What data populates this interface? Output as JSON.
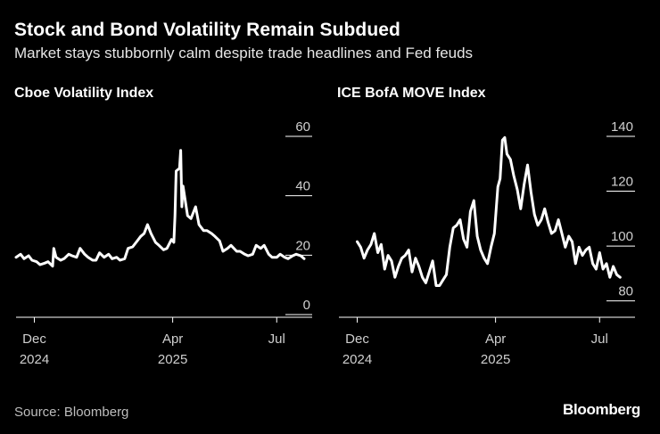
{
  "header": {
    "title": "Stock and Bond Volatility Remain Subdued",
    "subtitle": "Market stays stubbornly calm despite trade headlines and Fed feuds"
  },
  "footer": {
    "source": "Source: Bloomberg",
    "brand": "Bloomberg"
  },
  "colors": {
    "background": "#000000",
    "line": "#ffffff",
    "axis": "#ffffff",
    "text": "#cfcfcf"
  },
  "chart_data": [
    {
      "type": "line",
      "title": "Cboe Volatility Index",
      "x_tick_labels": [
        {
          "month": "Dec",
          "year": "2024",
          "x": "2024-12-01"
        },
        {
          "month": "Apr",
          "year": "2025",
          "x": "2025-04-01"
        },
        {
          "month": "Jul",
          "year": "",
          "x": "2025-07-01"
        }
      ],
      "xlim": [
        "2024-11-15",
        "2025-08-01"
      ],
      "ylim": [
        0,
        60
      ],
      "y_ticks": [
        0,
        20,
        40,
        60
      ],
      "grid": false,
      "series": [
        {
          "x": [
            "2024-11-15",
            "2024-11-19",
            "2024-11-22",
            "2024-11-26",
            "2024-11-29",
            "2024-12-03",
            "2024-12-06",
            "2024-12-10",
            "2024-12-13",
            "2024-12-17",
            "2024-12-18",
            "2024-12-20",
            "2024-12-24",
            "2024-12-27",
            "2024-12-31",
            "2025-01-03",
            "2025-01-07",
            "2025-01-10",
            "2025-01-14",
            "2025-01-17",
            "2025-01-21",
            "2025-01-24",
            "2025-01-27",
            "2025-01-31",
            "2025-02-04",
            "2025-02-07",
            "2025-02-11",
            "2025-02-14",
            "2025-02-18",
            "2025-02-21",
            "2025-02-25",
            "2025-02-28",
            "2025-03-04",
            "2025-03-07",
            "2025-03-10",
            "2025-03-13",
            "2025-03-17",
            "2025-03-20",
            "2025-03-24",
            "2025-03-27",
            "2025-03-31",
            "2025-04-02",
            "2025-04-03",
            "2025-04-04",
            "2025-04-07",
            "2025-04-08",
            "2025-04-09",
            "2025-04-10",
            "2025-04-14",
            "2025-04-17",
            "2025-04-21",
            "2025-04-24",
            "2025-04-28",
            "2025-05-01",
            "2025-05-05",
            "2025-05-08",
            "2025-05-12",
            "2025-05-15",
            "2025-05-19",
            "2025-05-22",
            "2025-05-27",
            "2025-05-30",
            "2025-06-03",
            "2025-06-06",
            "2025-06-10",
            "2025-06-13",
            "2025-06-17",
            "2025-06-20",
            "2025-06-24",
            "2025-06-27",
            "2025-07-01",
            "2025-07-04",
            "2025-07-08",
            "2025-07-11",
            "2025-07-15",
            "2025-07-18",
            "2025-07-22",
            "2025-07-25"
          ],
          "values": [
            16,
            17,
            15.5,
            16.5,
            15,
            14.5,
            13.5,
            14,
            14.5,
            13,
            19,
            16,
            15,
            15.5,
            17,
            16.5,
            16,
            19,
            17,
            16,
            15,
            15,
            17.5,
            16,
            17,
            15.5,
            16,
            15,
            15.5,
            19,
            19.5,
            21,
            23,
            24,
            27,
            24,
            21,
            20,
            18.5,
            19,
            22,
            21,
            30,
            45,
            46,
            52,
            33,
            40,
            30,
            29,
            33,
            27,
            25,
            25,
            24,
            23,
            21.5,
            18,
            19,
            20,
            18,
            18,
            17,
            16.5,
            17,
            20,
            19,
            20,
            17,
            16,
            16,
            17,
            16,
            15.5,
            16.5,
            17,
            16.5,
            15.5
          ]
        }
      ]
    },
    {
      "type": "line",
      "title": "ICE BofA MOVE Index",
      "x_tick_labels": [
        {
          "month": "Dec",
          "year": "2024",
          "x": "2024-12-01"
        },
        {
          "month": "Apr",
          "year": "2025",
          "x": "2025-04-01"
        },
        {
          "month": "Jul",
          "year": "",
          "x": "2025-07-01"
        }
      ],
      "xlim": [
        "2024-11-15",
        "2025-08-01"
      ],
      "ylim": [
        75,
        140
      ],
      "y_ticks": [
        80,
        100,
        120,
        140
      ],
      "grid": false,
      "series": [
        {
          "x": [
            "2024-12-01",
            "2024-12-04",
            "2024-12-07",
            "2024-12-10",
            "2024-12-13",
            "2024-12-16",
            "2024-12-19",
            "2024-12-22",
            "2024-12-25",
            "2024-12-28",
            "2024-12-31",
            "2025-01-03",
            "2025-01-06",
            "2025-01-09",
            "2025-01-12",
            "2025-01-15",
            "2025-01-18",
            "2025-01-21",
            "2025-01-24",
            "2025-01-27",
            "2025-01-30",
            "2025-02-02",
            "2025-02-05",
            "2025-02-08",
            "2025-02-11",
            "2025-02-14",
            "2025-02-17",
            "2025-02-20",
            "2025-02-23",
            "2025-02-26",
            "2025-03-01",
            "2025-03-04",
            "2025-03-07",
            "2025-03-10",
            "2025-03-13",
            "2025-03-16",
            "2025-03-19",
            "2025-03-22",
            "2025-03-25",
            "2025-03-28",
            "2025-03-31",
            "2025-04-03",
            "2025-04-05",
            "2025-04-07",
            "2025-04-09",
            "2025-04-11",
            "2025-04-14",
            "2025-04-17",
            "2025-04-20",
            "2025-04-23",
            "2025-04-26",
            "2025-04-29",
            "2025-05-02",
            "2025-05-05",
            "2025-05-08",
            "2025-05-11",
            "2025-05-14",
            "2025-05-17",
            "2025-05-20",
            "2025-05-23",
            "2025-05-26",
            "2025-05-29",
            "2025-06-01",
            "2025-06-04",
            "2025-06-07",
            "2025-06-10",
            "2025-06-13",
            "2025-06-16",
            "2025-06-19",
            "2025-06-22",
            "2025-06-25",
            "2025-06-28",
            "2025-07-01",
            "2025-07-04",
            "2025-07-07",
            "2025-07-10",
            "2025-07-13",
            "2025-07-16",
            "2025-07-19"
          ],
          "values": [
            98,
            96,
            92,
            95,
            97,
            101,
            94,
            97,
            88,
            93,
            91,
            85,
            89,
            92,
            93,
            95,
            87,
            92,
            89,
            85,
            83,
            87,
            91,
            82,
            82,
            84,
            86,
            96,
            103,
            104,
            106,
            99,
            96,
            109,
            113,
            100,
            95,
            92,
            90,
            96,
            101,
            118,
            121,
            135,
            136,
            130,
            128,
            122,
            117,
            110,
            119,
            126,
            116,
            108,
            104,
            106,
            110,
            105,
            101,
            102,
            106,
            101,
            96,
            100,
            98,
            90,
            96,
            93,
            95,
            96,
            90,
            88,
            94,
            88,
            90,
            85,
            89,
            86,
            85
          ]
        }
      ]
    }
  ]
}
